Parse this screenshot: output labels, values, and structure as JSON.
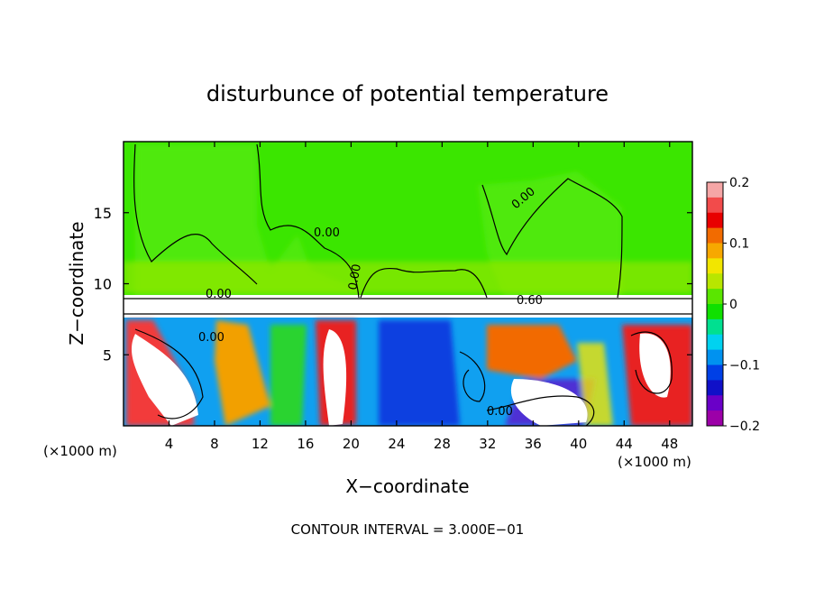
{
  "chart_data": {
    "type": "heatmap",
    "title": "disturbunce of potential temperature",
    "xlabel": "X−coordinate",
    "ylabel": "Z−coordinate",
    "x_unit": "(×1000 m)",
    "z_unit": "(×1000 m)",
    "xlim": [
      0,
      50
    ],
    "ylim": [
      0,
      20
    ],
    "x_ticks": [
      "4",
      "8",
      "12",
      "16",
      "20",
      "24",
      "28",
      "32",
      "36",
      "40",
      "44",
      "48"
    ],
    "y_ticks": [
      "5",
      "10",
      "15"
    ],
    "colorbar": {
      "range": [
        -0.2,
        0.2
      ],
      "tick_labels": [
        "0.2",
        "0.1",
        "0",
        "−0.1",
        "−0.2"
      ],
      "colors": [
        "#f5a6a6",
        "#f24b4b",
        "#e80000",
        "#f26b00",
        "#f7a800",
        "#f2e600",
        "#b8e600",
        "#5ae600",
        "#10e000",
        "#00e090",
        "#00d2f0",
        "#0092f0",
        "#0040e6",
        "#1010c8",
        "#6a00c8",
        "#9c00a8"
      ]
    },
    "contour_labels": [
      "0.00",
      "0.00",
      "0.00",
      "0.00",
      "0.60",
      "0.00",
      "0.00"
    ],
    "contour_interval_text": "CONTOUR INTERVAL = 3.000E−01"
  }
}
